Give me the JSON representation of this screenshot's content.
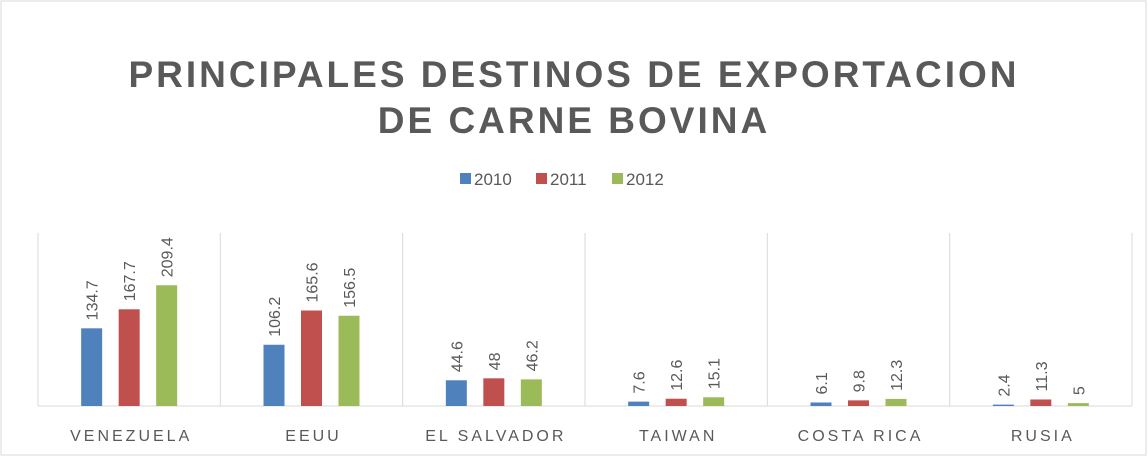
{
  "chart_data": {
    "type": "bar",
    "title": "PRINCIPALES DESTINOS DE EXPORTACION DE CARNE BOVINA",
    "categories": [
      "VENEZUELA",
      "EEUU",
      "EL SALVADOR",
      "TAIWAN",
      "COSTA RICA",
      "RUSIA"
    ],
    "series": [
      {
        "name": "2010",
        "color": "#4f81bd",
        "values": [
          134.7,
          106.2,
          44.6,
          7.6,
          6.1,
          2.4
        ]
      },
      {
        "name": "2011",
        "color": "#c0504d",
        "values": [
          167.7,
          165.6,
          48,
          12.6,
          9.8,
          11.3
        ]
      },
      {
        "name": "2012",
        "color": "#9bbb59",
        "values": [
          209.4,
          156.5,
          46.2,
          15.1,
          12.3,
          5
        ]
      }
    ],
    "ylim": [
      0,
      300
    ],
    "legend": "top"
  }
}
